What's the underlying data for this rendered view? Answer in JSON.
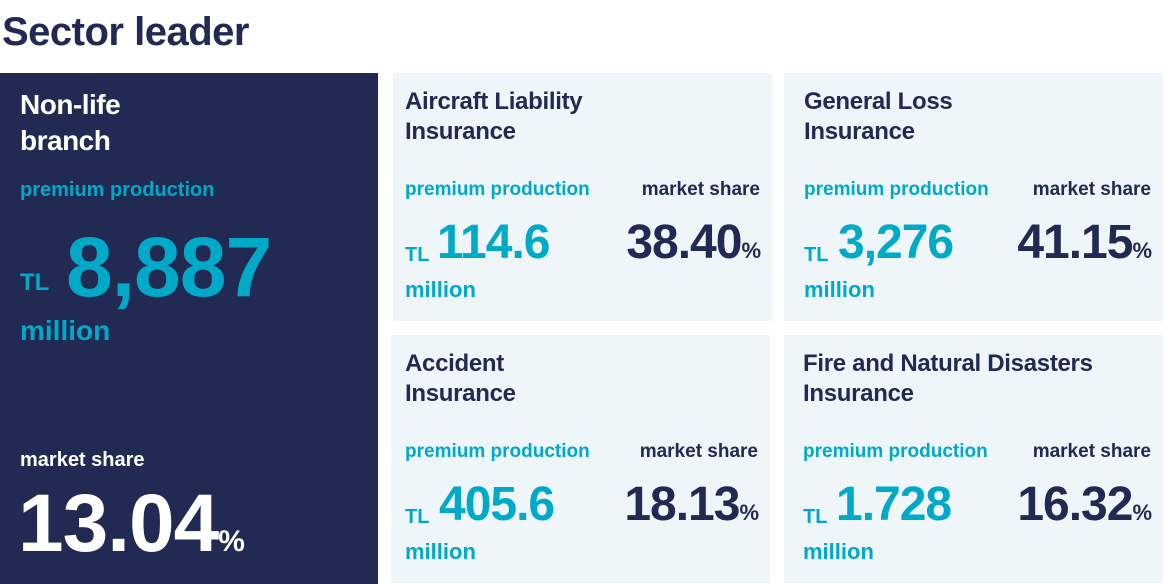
{
  "title": "Sector leader",
  "main": {
    "heading": "Non-life branch",
    "premium_label": "premium production",
    "currency": "TL",
    "premium_value": "8,887",
    "unit": "million",
    "market_label": "market share",
    "market_value": "13.04",
    "pct": "%"
  },
  "cards": [
    {
      "heading": "Aircraft Liability Insurance",
      "premium_label": "premium production",
      "market_label": "market share",
      "currency": "TL",
      "premium_value": "114.6",
      "unit": "million",
      "market_value": "38.40",
      "pct": "%"
    },
    {
      "heading": "General Loss Insurance",
      "premium_label": "premium production",
      "market_label": "market share",
      "currency": "TL",
      "premium_value": "3,276",
      "unit": "million",
      "market_value": "41.15",
      "pct": "%"
    },
    {
      "heading": "Accident Insurance",
      "premium_label": "premium production",
      "market_label": "market share",
      "currency": "TL",
      "premium_value": "405.6",
      "unit": "million",
      "market_value": "18.13",
      "pct": "%"
    },
    {
      "heading": "Fire and Natural Disasters Insurance",
      "premium_label": "premium production",
      "market_label": "market share",
      "currency": "TL",
      "premium_value": "1.728",
      "unit": "million",
      "market_value": "16.32",
      "pct": "%"
    }
  ],
  "colors": {
    "navy": "#212a52",
    "teal": "#00a9c8",
    "card_bg": "#eef6fa"
  }
}
